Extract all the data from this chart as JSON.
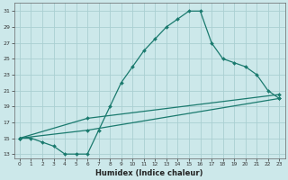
{
  "xlabel": "Humidex (Indice chaleur)",
  "bg_color": "#cce8ea",
  "grid_color": "#aacfd2",
  "line_color": "#1a7a6e",
  "xlim": [
    -0.5,
    23.5
  ],
  "ylim": [
    12.5,
    32.0
  ],
  "xticks": [
    0,
    1,
    2,
    3,
    4,
    5,
    6,
    7,
    8,
    9,
    10,
    11,
    12,
    13,
    14,
    15,
    16,
    17,
    18,
    19,
    20,
    21,
    22,
    23
  ],
  "yticks": [
    13,
    15,
    17,
    19,
    21,
    23,
    25,
    27,
    29,
    31
  ],
  "line1_x": [
    0,
    1,
    2,
    3,
    4,
    5,
    6,
    7,
    8,
    9,
    10,
    11,
    12,
    13,
    14,
    15,
    16,
    17,
    18,
    19,
    20,
    21,
    22,
    23
  ],
  "line1_y": [
    15,
    15,
    14.5,
    14,
    13,
    13,
    13,
    16,
    19,
    22,
    24,
    26,
    27.5,
    29,
    30,
    31,
    31,
    27,
    25,
    24.5,
    24,
    23,
    21,
    20
  ],
  "line2_x": [
    0,
    6,
    23
  ],
  "line2_y": [
    15,
    16.0,
    20.0
  ],
  "line3_x": [
    0,
    6,
    23
  ],
  "line3_y": [
    15,
    17.5,
    20.5
  ],
  "marker": "D",
  "marker_size": 2,
  "line_width": 0.9
}
